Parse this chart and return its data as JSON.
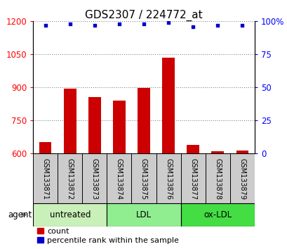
{
  "title": "GDS2307 / 224772_at",
  "samples": [
    "GSM133871",
    "GSM133872",
    "GSM133873",
    "GSM133874",
    "GSM133875",
    "GSM133876",
    "GSM133877",
    "GSM133878",
    "GSM133879"
  ],
  "counts": [
    650,
    892,
    855,
    840,
    895,
    1035,
    638,
    608,
    613
  ],
  "percentiles": [
    97,
    98,
    97,
    98,
    98,
    99,
    96,
    97,
    97
  ],
  "groups": [
    {
      "label": "untreated",
      "start": 0,
      "end": 3,
      "color": "#c8f0b8"
    },
    {
      "label": "LDL",
      "start": 3,
      "end": 6,
      "color": "#90ee90"
    },
    {
      "label": "ox-LDL",
      "start": 6,
      "end": 9,
      "color": "#44dd44"
    }
  ],
  "ylim_left": [
    600,
    1200
  ],
  "ylim_right": [
    0,
    100
  ],
  "yticks_left": [
    600,
    750,
    900,
    1050,
    1200
  ],
  "ytick_labels_left": [
    "600",
    "750",
    "900",
    "1050",
    "1200"
  ],
  "yticks_right": [
    0,
    25,
    50,
    75,
    100
  ],
  "ytick_labels_right": [
    "0",
    "25",
    "50",
    "75",
    "100%"
  ],
  "bar_color": "#cc0000",
  "dot_color": "#0000cc",
  "bar_width": 0.5,
  "grid_color": "#888888",
  "legend_count_label": "count",
  "legend_pct_label": "percentile rank within the sample",
  "title_fontsize": 11,
  "tick_fontsize": 8.5,
  "sample_area_color": "#cccccc",
  "sample_fontsize": 7
}
